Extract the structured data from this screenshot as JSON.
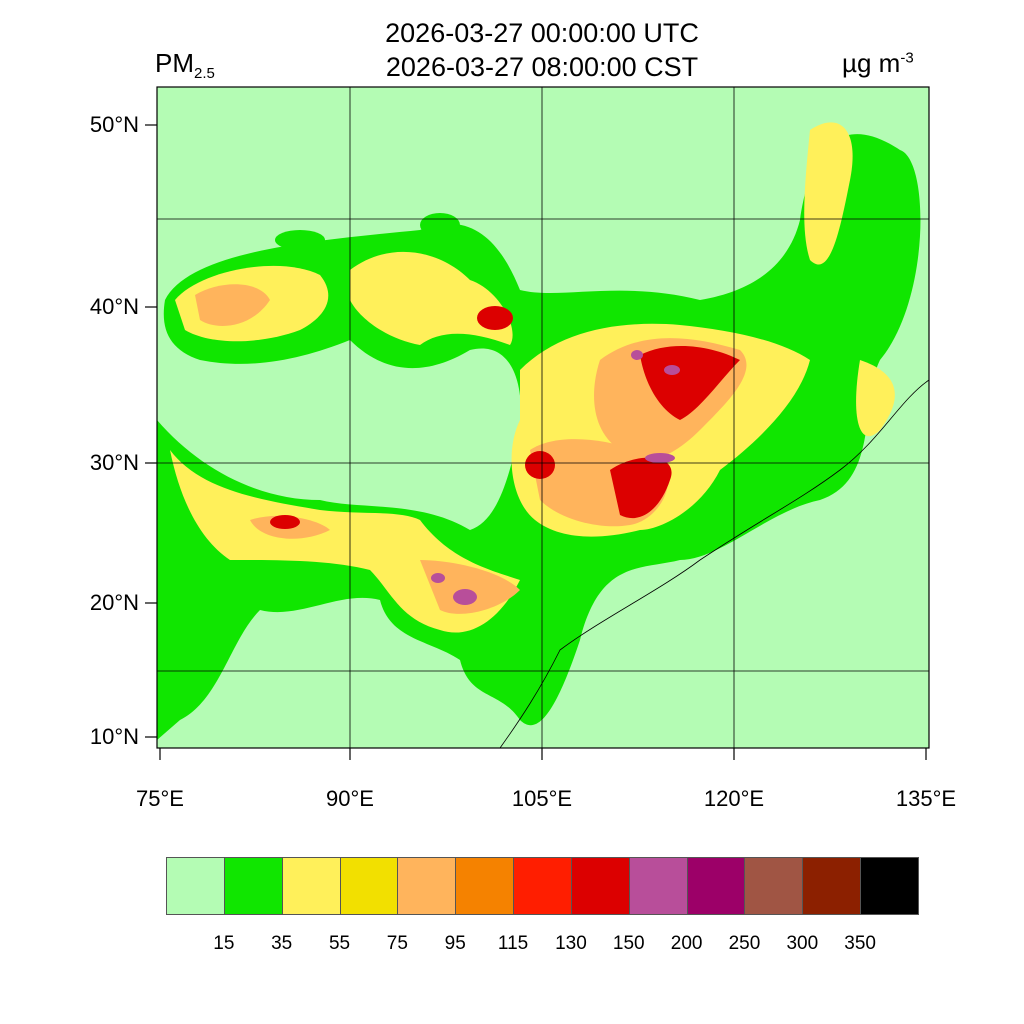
{
  "header": {
    "variable": "PM",
    "variable_sub": "2.5",
    "title_utc": "2026-03-27 00:00:00 UTC",
    "title_cst": "2026-03-27 08:00:00 CST",
    "units": "µg m",
    "units_sup": "-3"
  },
  "map": {
    "lat_labels": [
      "50°N",
      "40°N",
      "30°N",
      "20°N",
      "10°N"
    ],
    "lon_labels": [
      "75°E",
      "90°E",
      "105°E",
      "120°E",
      "135°E"
    ],
    "background_color": "#b4fcb4"
  },
  "colorbar": {
    "colors": [
      "#b4fcb4",
      "#10e600",
      "#fff05a",
      "#f2e000",
      "#ffb45c",
      "#f58200",
      "#ff1e00",
      "#dc0000",
      "#b84e9a",
      "#9c0068",
      "#a05544",
      "#8c2000",
      "#000000"
    ],
    "labels": [
      "15",
      "35",
      "55",
      "75",
      "95",
      "115",
      "130",
      "150",
      "200",
      "250",
      "300",
      "350"
    ]
  }
}
